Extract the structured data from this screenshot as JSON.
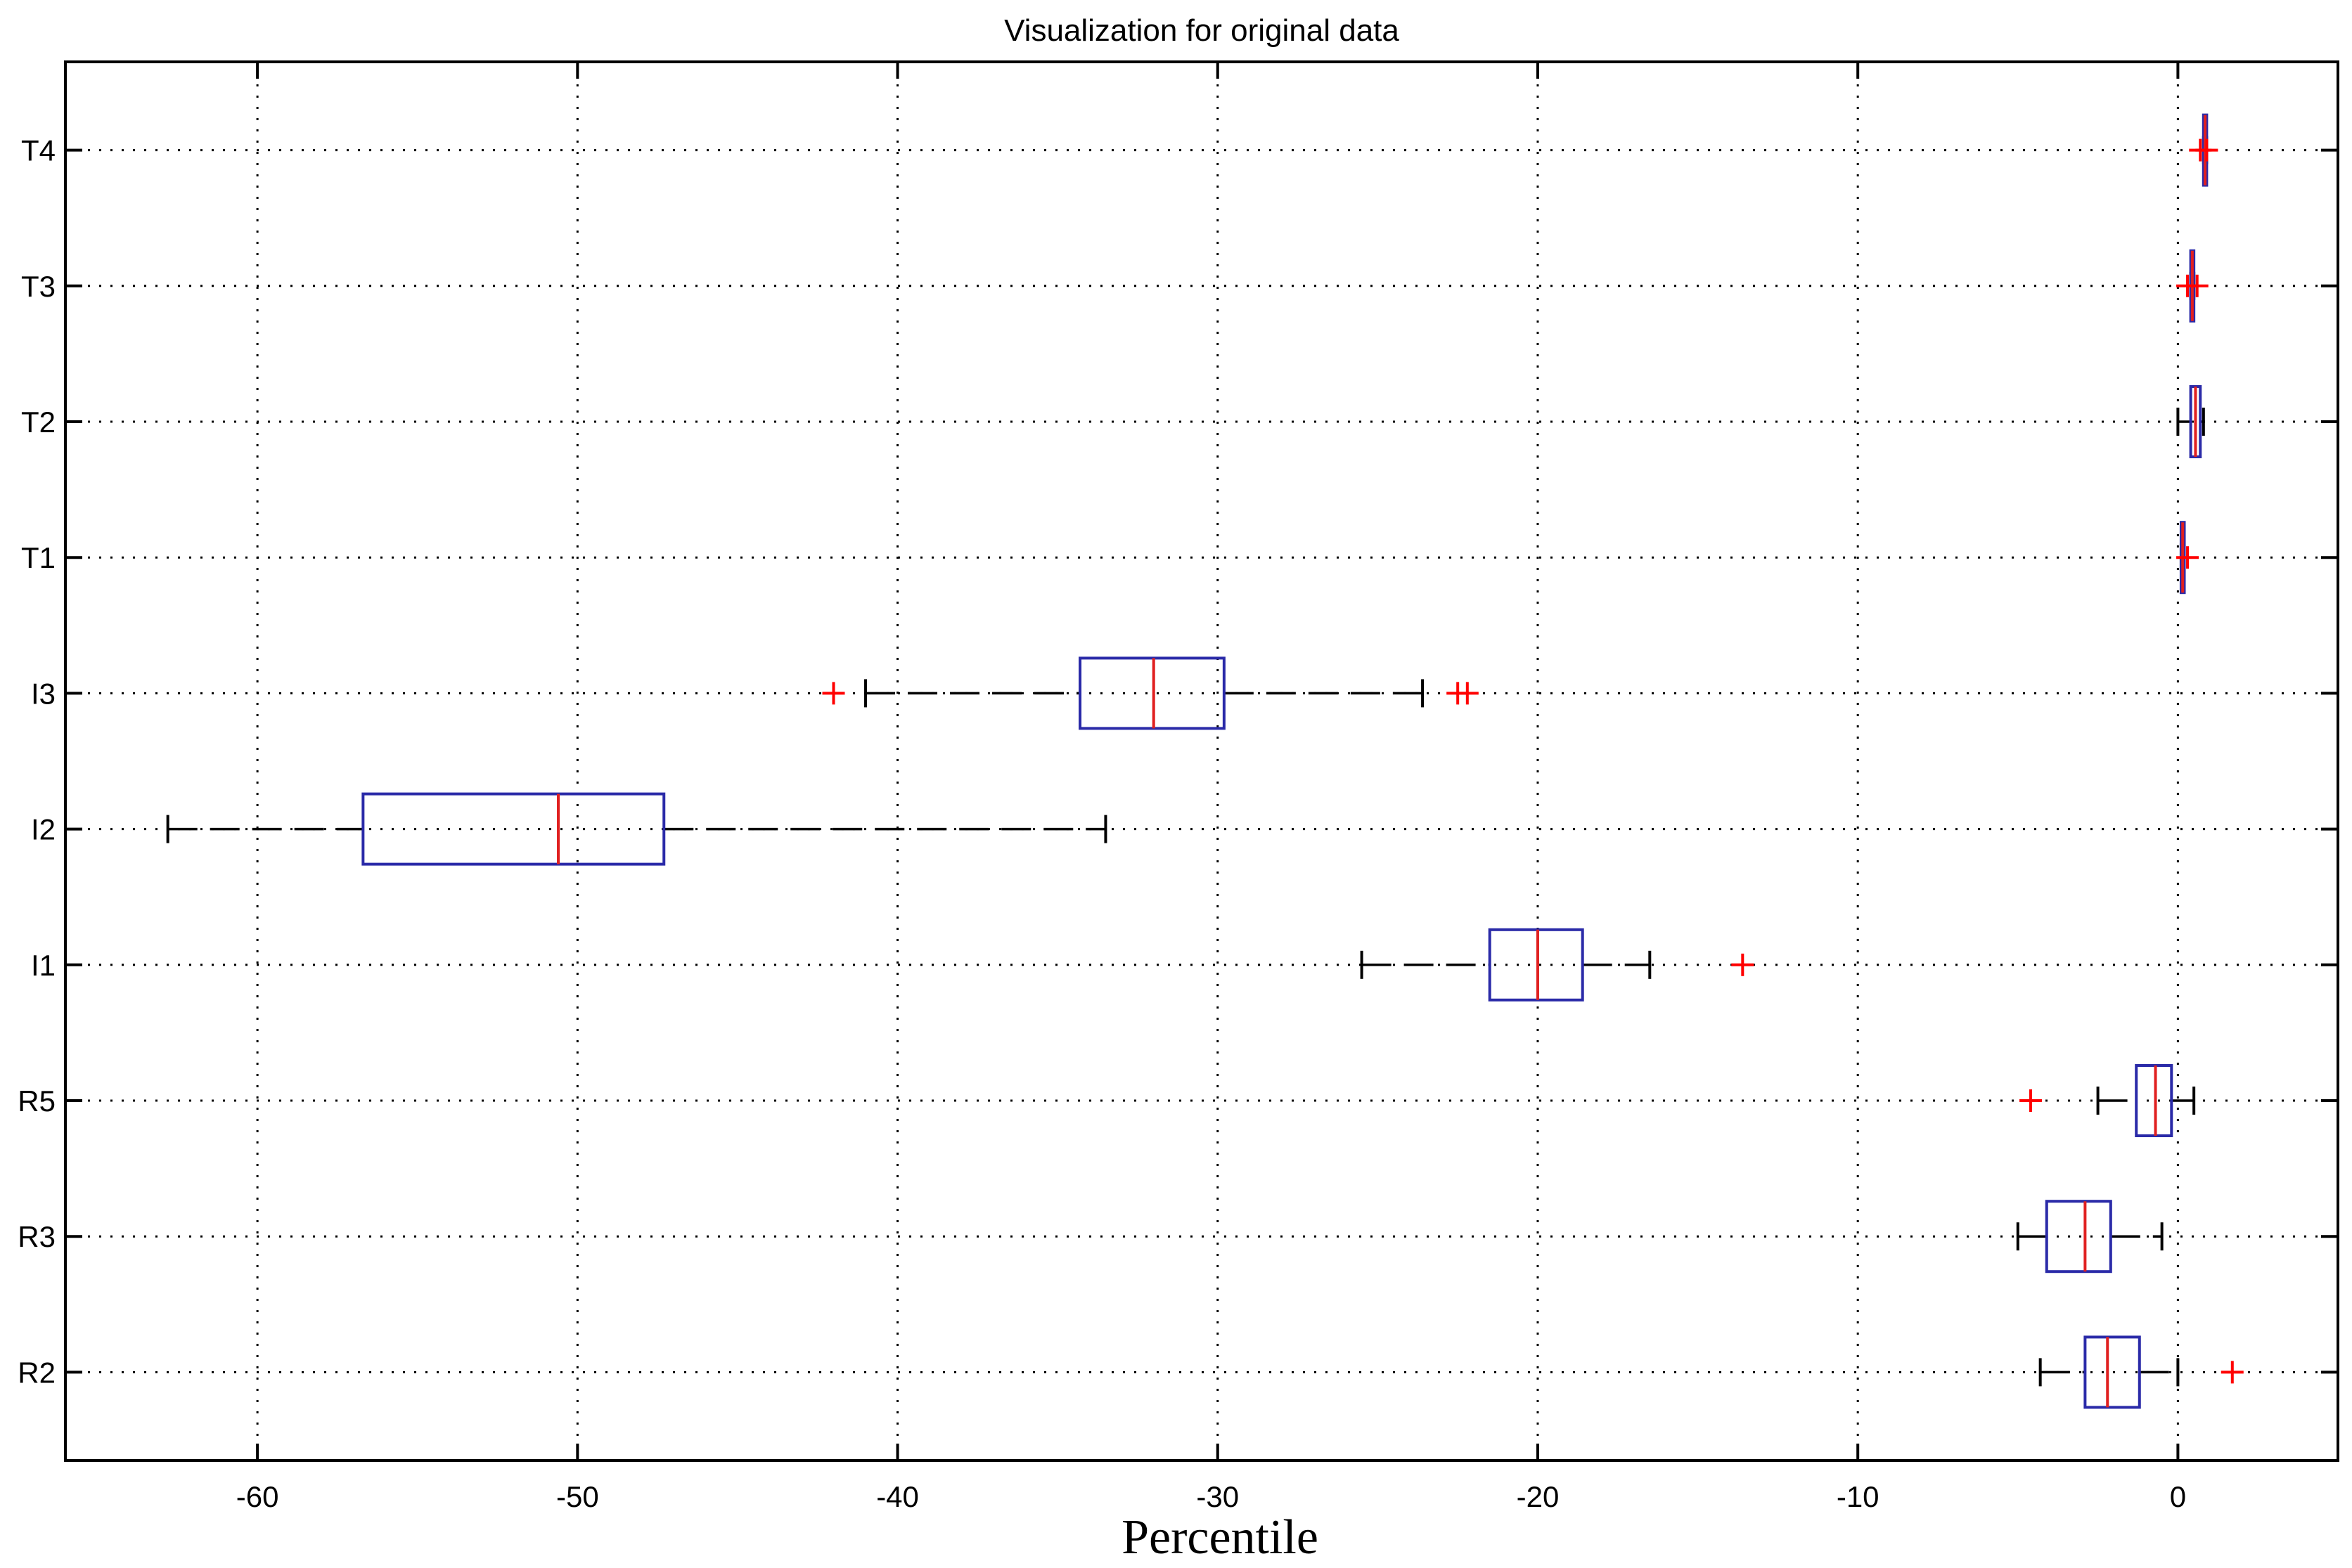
{
  "chart_data": {
    "type": "boxplot",
    "title": "Visualization for original data",
    "xlabel": "Percentile",
    "ylabel": "",
    "orientation": "horizontal",
    "xlim": [
      -66,
      5
    ],
    "xticks": [
      -60,
      -50,
      -40,
      -30,
      -20,
      -10,
      0
    ],
    "grid": true,
    "categories": [
      "T4",
      "T3",
      "T2",
      "T1",
      "I3",
      "I2",
      "I1",
      "R5",
      "R3",
      "R2"
    ],
    "boxes": [
      {
        "label": "T4",
        "whisker_low": 0.8,
        "q1": 0.8,
        "median": 0.85,
        "q3": 0.9,
        "whisker_high": 0.9,
        "outliers": [
          0.7,
          0.9
        ]
      },
      {
        "label": "T3",
        "whisker_low": 0.4,
        "q1": 0.4,
        "median": 0.45,
        "q3": 0.5,
        "whisker_high": 0.5,
        "outliers": [
          0.3,
          0.6
        ]
      },
      {
        "label": "T2",
        "whisker_low": 0.0,
        "q1": 0.4,
        "median": 0.55,
        "q3": 0.7,
        "whisker_high": 0.8,
        "outliers": []
      },
      {
        "label": "T1",
        "whisker_low": 0.1,
        "q1": 0.1,
        "median": 0.15,
        "q3": 0.2,
        "whisker_high": 0.2,
        "outliers": [
          0.3
        ]
      },
      {
        "label": "I3",
        "whisker_low": -41,
        "q1": -34.3,
        "median": -32,
        "q3": -29.8,
        "whisker_high": -23.6,
        "outliers": [
          -42,
          -22.5,
          -22.2
        ]
      },
      {
        "label": "I2",
        "whisker_low": -62.8,
        "q1": -56.7,
        "median": -50.6,
        "q3": -47.3,
        "whisker_high": -33.5,
        "outliers": []
      },
      {
        "label": "I1",
        "whisker_low": -25.5,
        "q1": -21.5,
        "median": -20,
        "q3": -18.6,
        "whisker_high": -16.5,
        "outliers": [
          -13.6
        ]
      },
      {
        "label": "R5",
        "whisker_low": -2.5,
        "q1": -1.3,
        "median": -0.7,
        "q3": -0.2,
        "whisker_high": 0.5,
        "outliers": [
          -4.6
        ]
      },
      {
        "label": "R3",
        "whisker_low": -5,
        "q1": -4.1,
        "median": -2.9,
        "q3": -2.1,
        "whisker_high": -0.5,
        "outliers": []
      },
      {
        "label": "R2",
        "whisker_low": -4.3,
        "q1": -2.9,
        "median": -2.2,
        "q3": -1.2,
        "whisker_high": 0,
        "outliers": [
          1.7
        ]
      }
    ]
  }
}
